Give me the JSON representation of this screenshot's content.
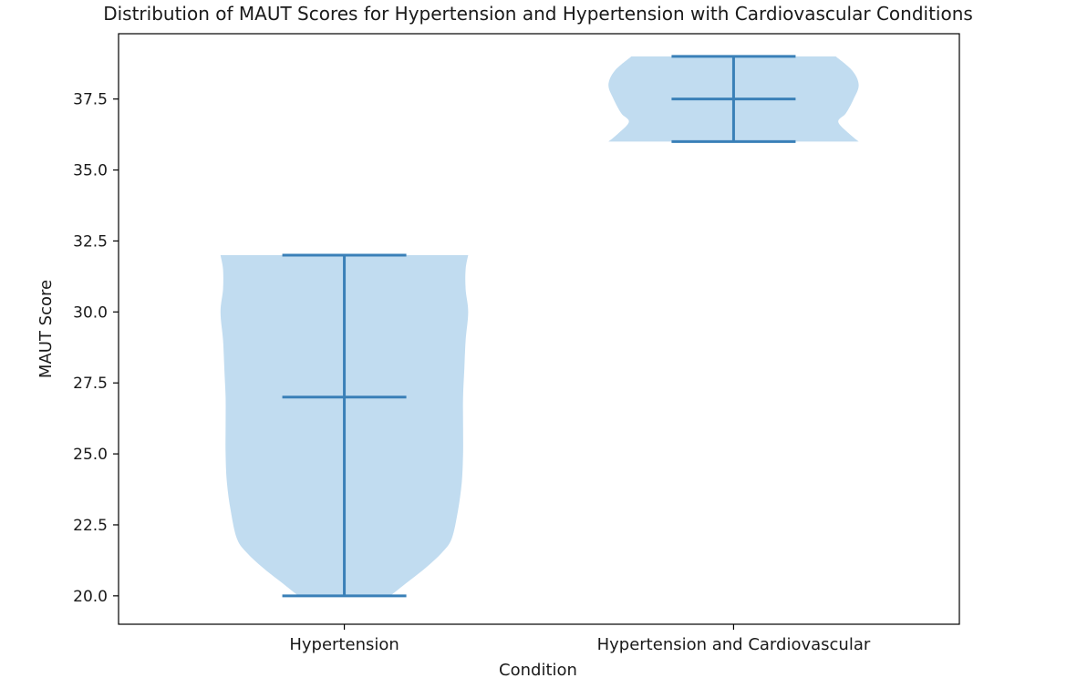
{
  "chart_data": {
    "type": "violin",
    "title": "Distribution of MAUT Scores for Hypertension and Hypertension with Cardiovascular Conditions",
    "xlabel": "Condition",
    "ylabel": "MAUT Score",
    "categories": [
      "Hypertension",
      "Hypertension and Cardiovascular"
    ],
    "ylim": [
      19.0,
      39.8
    ],
    "yticks": [
      20.0,
      22.5,
      25.0,
      27.5,
      30.0,
      32.5,
      35.0,
      37.5
    ],
    "ytick_labels": [
      "20.0",
      "22.5",
      "25.0",
      "27.5",
      "30.0",
      "32.5",
      "35.0",
      "37.5"
    ],
    "grid": false,
    "legend": "none",
    "colors": {
      "body": "#c1dcf0",
      "lines": "#3a80b8",
      "axis": "#000000"
    },
    "violins": [
      {
        "category": "Hypertension",
        "min": 20.0,
        "median": 27.0,
        "max": 32.0,
        "density": [
          [
            20.0,
            0.36
          ],
          [
            20.5,
            0.5
          ],
          [
            21.0,
            0.64
          ],
          [
            21.5,
            0.76
          ],
          [
            22.0,
            0.84
          ],
          [
            23.0,
            0.89
          ],
          [
            24.0,
            0.92
          ],
          [
            25.0,
            0.93
          ],
          [
            26.0,
            0.93
          ],
          [
            27.0,
            0.93
          ],
          [
            28.0,
            0.94
          ],
          [
            29.0,
            0.95
          ],
          [
            30.0,
            0.97
          ],
          [
            30.8,
            0.95
          ],
          [
            31.5,
            0.95
          ],
          [
            32.0,
            0.97
          ]
        ]
      },
      {
        "category": "Hypertension and Cardiovascular",
        "min": 36.0,
        "median": 37.5,
        "max": 39.0,
        "density": [
          [
            36.0,
            0.98
          ],
          [
            36.3,
            0.9
          ],
          [
            36.7,
            0.82
          ],
          [
            37.0,
            0.88
          ],
          [
            37.5,
            0.94
          ],
          [
            38.0,
            0.98
          ],
          [
            38.5,
            0.93
          ],
          [
            39.0,
            0.8
          ]
        ]
      }
    ]
  }
}
